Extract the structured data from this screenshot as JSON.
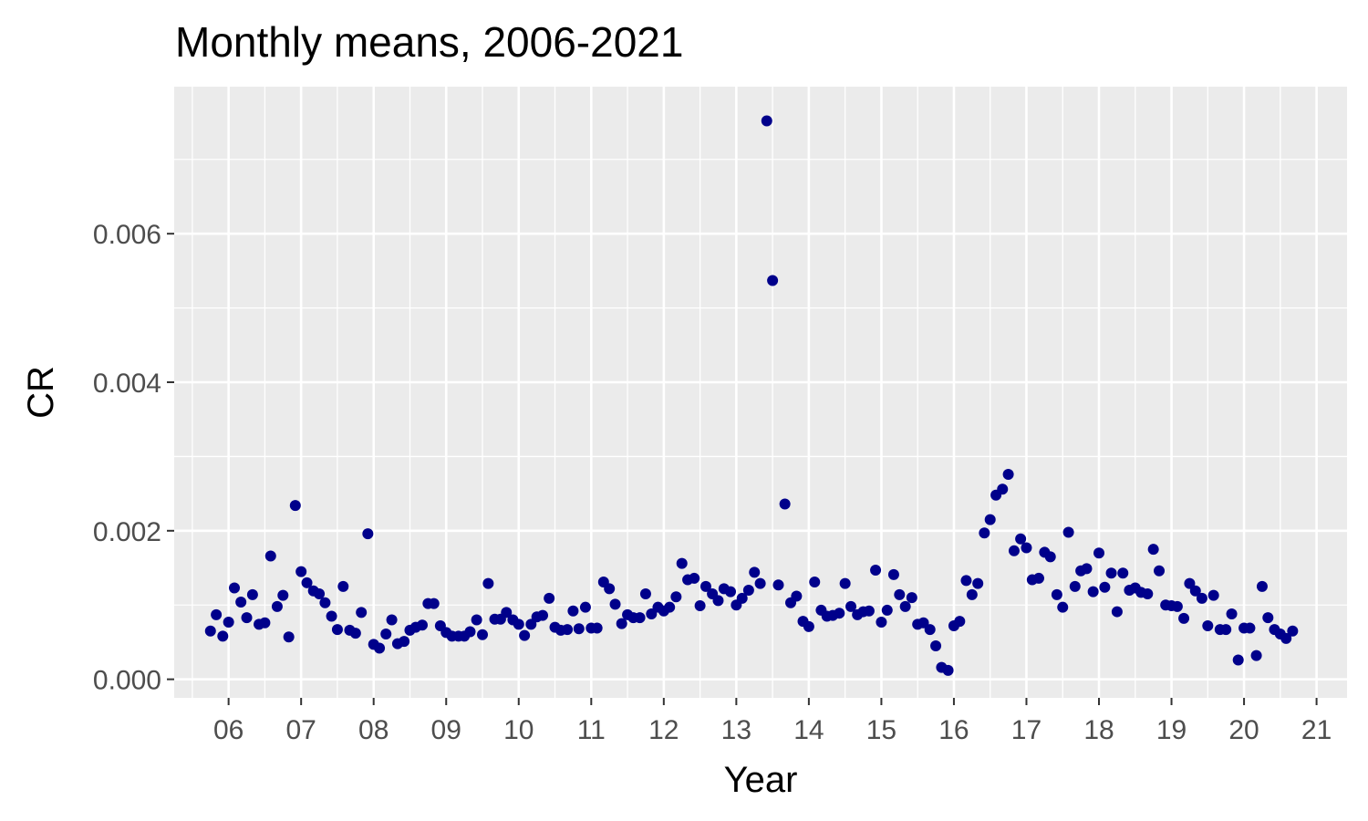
{
  "chart_data": {
    "type": "scatter",
    "title": "Monthly means, 2006-2021",
    "xlabel": "Year",
    "ylabel": "CR",
    "x_ticks": [
      {
        "value": 2006,
        "label": "06"
      },
      {
        "value": 2007,
        "label": "07"
      },
      {
        "value": 2008,
        "label": "08"
      },
      {
        "value": 2009,
        "label": "09"
      },
      {
        "value": 2010,
        "label": "10"
      },
      {
        "value": 2011,
        "label": "11"
      },
      {
        "value": 2012,
        "label": "12"
      },
      {
        "value": 2013,
        "label": "13"
      },
      {
        "value": 2014,
        "label": "14"
      },
      {
        "value": 2015,
        "label": "15"
      },
      {
        "value": 2016,
        "label": "16"
      },
      {
        "value": 2017,
        "label": "17"
      },
      {
        "value": 2018,
        "label": "18"
      },
      {
        "value": 2019,
        "label": "19"
      },
      {
        "value": 2020,
        "label": "20"
      },
      {
        "value": 2021,
        "label": "21"
      }
    ],
    "y_ticks": [
      {
        "value": 0.0,
        "label": "0.000"
      },
      {
        "value": 0.002,
        "label": "0.002"
      },
      {
        "value": 0.004,
        "label": "0.004"
      },
      {
        "value": 0.006,
        "label": "0.006"
      }
    ],
    "xlim": [
      2005.25,
      2021.42
    ],
    "ylim": [
      -0.00025,
      0.00798
    ],
    "grid": true,
    "legend": "none",
    "point_color": "#00008B",
    "panel_color": "#EBEBEB",
    "series": [
      {
        "x": [
          2005.75,
          2005.83,
          2005.92,
          2006.0,
          2006.08,
          2006.17,
          2006.25,
          2006.33,
          2006.42,
          2006.5,
          2006.58,
          2006.67,
          2006.75,
          2006.83,
          2006.92,
          2007.0,
          2007.08,
          2007.17,
          2007.25,
          2007.33,
          2007.42,
          2007.5,
          2007.58,
          2007.67,
          2007.75,
          2007.83,
          2007.92,
          2008.0,
          2008.08,
          2008.17,
          2008.25,
          2008.33,
          2008.42,
          2008.5,
          2008.58,
          2008.67,
          2008.75,
          2008.83,
          2008.92,
          2009.0,
          2009.08,
          2009.17,
          2009.25,
          2009.33,
          2009.42,
          2009.5,
          2009.58,
          2009.67,
          2009.75,
          2009.83,
          2009.92,
          2010.0,
          2010.08,
          2010.17,
          2010.25,
          2010.33,
          2010.42,
          2010.5,
          2010.58,
          2010.67,
          2010.75,
          2010.83,
          2010.92,
          2011.0,
          2011.08,
          2011.17,
          2011.25,
          2011.33,
          2011.42,
          2011.5,
          2011.58,
          2011.67,
          2011.75,
          2011.83,
          2011.92,
          2012.0,
          2012.08,
          2012.17,
          2012.25,
          2012.33,
          2012.42,
          2012.5,
          2012.58,
          2012.67,
          2012.75,
          2012.83,
          2012.92,
          2013.0,
          2013.08,
          2013.17,
          2013.25,
          2013.33,
          2013.42,
          2013.5,
          2013.58,
          2013.67,
          2013.75,
          2013.83,
          2013.92,
          2014.0,
          2014.08,
          2014.17,
          2014.25,
          2014.33,
          2014.42,
          2014.5,
          2014.58,
          2014.67,
          2014.75,
          2014.83,
          2014.92,
          2015.0,
          2015.08,
          2015.17,
          2015.25,
          2015.33,
          2015.42,
          2015.5,
          2015.58,
          2015.67,
          2015.75,
          2015.83,
          2015.92,
          2016.0,
          2016.08,
          2016.17,
          2016.25,
          2016.33,
          2016.42,
          2016.5,
          2016.58,
          2016.67,
          2016.75,
          2016.83,
          2016.92,
          2017.0,
          2017.08,
          2017.17,
          2017.25,
          2017.33,
          2017.42,
          2017.5,
          2017.58,
          2017.67,
          2017.75,
          2017.83,
          2017.92,
          2018.0,
          2018.08,
          2018.17,
          2018.25,
          2018.33,
          2018.42,
          2018.5,
          2018.58,
          2018.67,
          2018.75,
          2018.83,
          2018.92,
          2019.0,
          2019.08,
          2019.17,
          2019.25,
          2019.33,
          2019.42,
          2019.5,
          2019.58,
          2019.67,
          2019.75,
          2019.83,
          2019.92,
          2020.0,
          2020.08,
          2020.17,
          2020.25,
          2020.33,
          2020.42,
          2020.5,
          2020.58,
          2020.67
        ],
        "y": [
          0.00065,
          0.00087,
          0.00058,
          0.00077,
          0.00123,
          0.00104,
          0.00083,
          0.00114,
          0.00074,
          0.00076,
          0.00166,
          0.00098,
          0.00113,
          0.00057,
          0.00234,
          0.00145,
          0.0013,
          0.00119,
          0.00115,
          0.00103,
          0.00085,
          0.00067,
          0.00125,
          0.00066,
          0.00062,
          0.0009,
          0.00196,
          0.00047,
          0.00042,
          0.00061,
          0.0008,
          0.00048,
          0.00051,
          0.00066,
          0.0007,
          0.00073,
          0.00102,
          0.00102,
          0.00072,
          0.00063,
          0.00058,
          0.00058,
          0.00058,
          0.00064,
          0.0008,
          0.0006,
          0.00129,
          0.00081,
          0.00081,
          0.0009,
          0.0008,
          0.00074,
          0.00059,
          0.00074,
          0.00084,
          0.00086,
          0.00109,
          0.0007,
          0.00066,
          0.00067,
          0.00092,
          0.00068,
          0.00097,
          0.00069,
          0.00069,
          0.00131,
          0.00122,
          0.00101,
          0.00075,
          0.00087,
          0.00083,
          0.00083,
          0.00115,
          0.00088,
          0.00097,
          0.00092,
          0.00097,
          0.00111,
          0.00156,
          0.00134,
          0.00136,
          0.00099,
          0.00125,
          0.00115,
          0.00106,
          0.00122,
          0.00118,
          0.001,
          0.00109,
          0.0012,
          0.00144,
          0.00129,
          0.00752,
          0.00537,
          0.00127,
          0.00236,
          0.00103,
          0.00112,
          0.00078,
          0.00071,
          0.00131,
          0.00093,
          0.00085,
          0.00086,
          0.00089,
          0.00129,
          0.00098,
          0.00087,
          0.00091,
          0.00092,
          0.00147,
          0.00077,
          0.00093,
          0.00141,
          0.00114,
          0.00098,
          0.0011,
          0.00074,
          0.00076,
          0.00067,
          0.00045,
          0.00016,
          0.00012,
          0.00072,
          0.00078,
          0.00133,
          0.00114,
          0.00129,
          0.00197,
          0.00215,
          0.00248,
          0.00256,
          0.00276,
          0.00173,
          0.00189,
          0.00177,
          0.00134,
          0.00136,
          0.00171,
          0.00165,
          0.00114,
          0.00097,
          0.00198,
          0.00125,
          0.00146,
          0.00149,
          0.00118,
          0.0017,
          0.00124,
          0.00143,
          0.00091,
          0.00143,
          0.0012,
          0.00123,
          0.00117,
          0.00115,
          0.00175,
          0.00146,
          0.001,
          0.00099,
          0.00098,
          0.00082,
          0.00129,
          0.00119,
          0.00109,
          0.00072,
          0.00113,
          0.00067,
          0.00067,
          0.00088,
          0.00026,
          0.00069,
          0.00069,
          0.00032,
          0.00125,
          0.00083,
          0.00067,
          0.00061,
          0.00055,
          0.00065
        ]
      }
    ]
  }
}
